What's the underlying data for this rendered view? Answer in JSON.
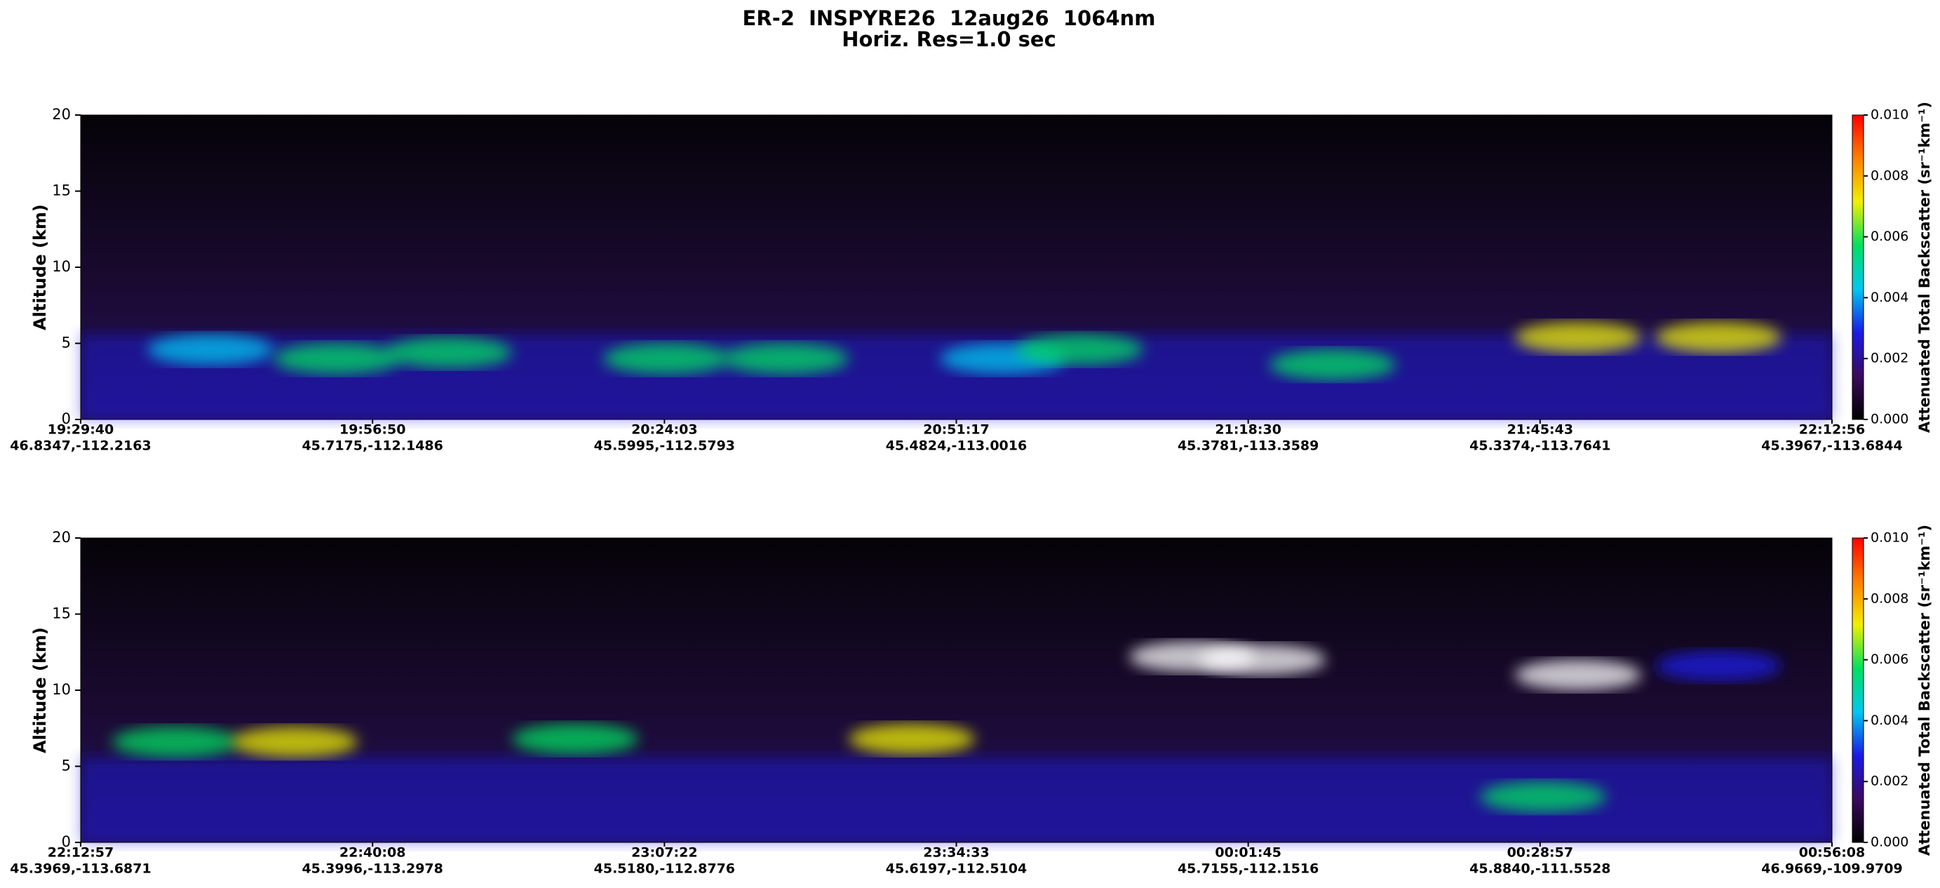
{
  "title": "ER-2  INSPYRE26  12aug26  1064nm",
  "subtitle": "Horiz. Res=1.0 sec",
  "colormap": [
    "#000000",
    "#3b0a5e",
    "#1a1ae6",
    "#00c8f0",
    "#00e060",
    "#f0f000",
    "#ff8000",
    "#ff0000"
  ],
  "chart_data": [
    {
      "type": "heatmap",
      "ylabel": "Altitude (km)",
      "ylim": [
        0,
        20
      ],
      "yticks": [
        0,
        5,
        10,
        15,
        20
      ],
      "xtick_labels": [
        {
          "time": "19:29:40",
          "location": "46.8347,-112.2163"
        },
        {
          "time": "19:56:50",
          "location": "45.7175,-112.1486"
        },
        {
          "time": "20:24:03",
          "location": "45.5995,-112.5793"
        },
        {
          "time": "20:51:17",
          "location": "45.4824,-113.0016"
        },
        {
          "time": "21:18:30",
          "location": "45.3781,-113.3589"
        },
        {
          "time": "21:45:43",
          "location": "45.3374,-113.7641"
        },
        {
          "time": "22:12:56",
          "location": "45.3967,-113.6844"
        }
      ],
      "colorbar": {
        "label": "Attenuated Total Backscatter (sr⁻¹km⁻¹)",
        "lim": [
          0,
          0.01
        ],
        "ticks": [
          {
            "value": 0,
            "label": "0.000"
          },
          {
            "value": 0.002,
            "label": "0.002"
          },
          {
            "value": 0.004,
            "label": "0.004"
          },
          {
            "value": 0.006,
            "label": "0.006"
          },
          {
            "value": 0.008,
            "label": "0.008"
          },
          {
            "value": 0.01,
            "label": "0.010"
          }
        ]
      }
    },
    {
      "type": "heatmap",
      "ylabel": "Altitude (km)",
      "ylim": [
        0,
        20
      ],
      "yticks": [
        0,
        5,
        10,
        15,
        20
      ],
      "xtick_labels": [
        {
          "time": "22:12:57",
          "location": "45.3969,-113.6871"
        },
        {
          "time": "22:40:08",
          "location": "45.3996,-113.2978"
        },
        {
          "time": "23:07:22",
          "location": "45.5180,-112.8776"
        },
        {
          "time": "23:34:33",
          "location": "45.6197,-112.5104"
        },
        {
          "time": "00:01:45",
          "location": "45.7155,-112.1516"
        },
        {
          "time": "00:28:57",
          "location": "45.8840,-111.5528"
        },
        {
          "time": "00:56:08",
          "location": "46.9669,-109.9709"
        }
      ],
      "colorbar": {
        "label": "Attenuated Total Backscatter (sr⁻¹km⁻¹)",
        "lim": [
          0,
          0.01
        ],
        "ticks": [
          {
            "value": 0,
            "label": "0.000"
          },
          {
            "value": 0.002,
            "label": "0.002"
          },
          {
            "value": 0.004,
            "label": "0.004"
          },
          {
            "value": 0.006,
            "label": "0.006"
          },
          {
            "value": 0.008,
            "label": "0.008"
          },
          {
            "value": 0.01,
            "label": "0.010"
          }
        ]
      }
    }
  ]
}
